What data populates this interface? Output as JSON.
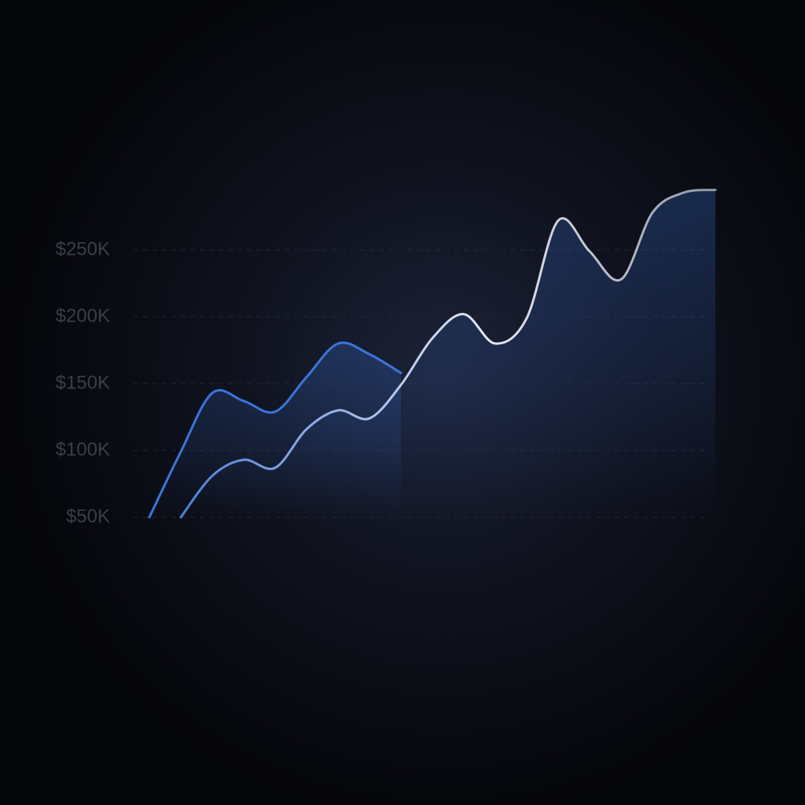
{
  "chart_data": {
    "type": "line",
    "categories": [
      null,
      null,
      null,
      null,
      null,
      null,
      null,
      null,
      null,
      null,
      null,
      null,
      null,
      null,
      null,
      null,
      null,
      null,
      null
    ],
    "series": [
      {
        "name": null,
        "color": "#3b74dc",
        "values": [
          50000,
          99000,
          143000,
          137000,
          129000,
          155000,
          180000,
          172000,
          158000,
          null,
          null,
          null,
          null,
          null,
          null,
          null,
          null,
          null,
          null
        ]
      },
      {
        "name": null,
        "color": "#e6e8f0",
        "values": [
          null,
          50000,
          81000,
          93000,
          87000,
          116000,
          130000,
          124000,
          149000,
          184000,
          202000,
          180000,
          199000,
          272000,
          249000,
          228000,
          278000,
          293000,
          295000
        ]
      }
    ],
    "ylim": [
      50000,
      300000
    ],
    "yticks": [
      {
        "value": 50000,
        "label": "$50K"
      },
      {
        "value": 100000,
        "label": "$100K"
      },
      {
        "value": 150000,
        "label": "$150K"
      },
      {
        "value": 200000,
        "label": "$200K"
      },
      {
        "value": 250000,
        "label": "$250K"
      }
    ],
    "grid": true
  }
}
